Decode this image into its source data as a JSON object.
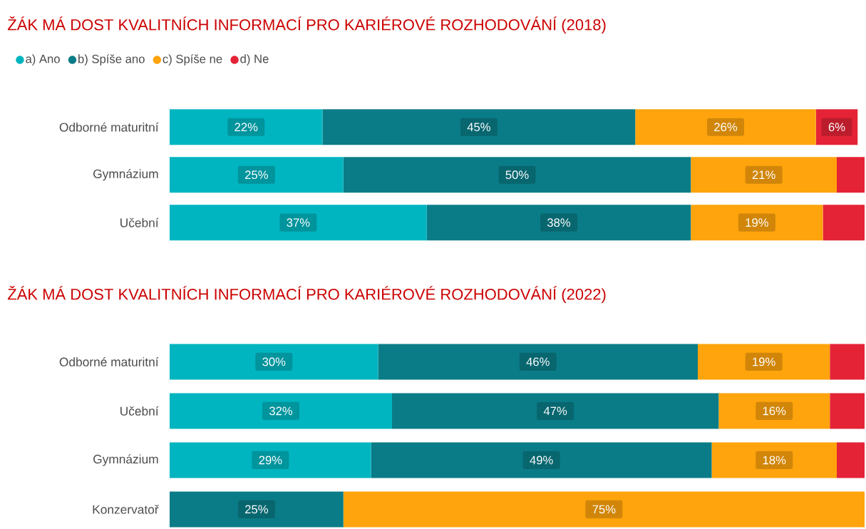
{
  "chart_data": [
    {
      "type": "bar",
      "orientation": "horizontal",
      "stacked": true,
      "title": "ŽÁK MÁ DOST KVALITNÍCH INFORMACÍ PRO KARIÉROVÉ ROZHODOVÁNÍ (2018)",
      "categories": [
        "Odborné maturitní",
        "Gymnázium",
        "Učební"
      ],
      "xlim": [
        0,
        100
      ],
      "tick_labels": "y",
      "legend": "top left",
      "series": [
        {
          "name": "a) Ano",
          "color": "#00b5c0",
          "values": [
            22,
            25,
            37
          ],
          "value_labels": [
            "22%",
            "25%",
            "37%"
          ]
        },
        {
          "name": "b) Spíše ano",
          "color": "#0a7c87",
          "values": [
            45,
            50,
            38
          ],
          "value_labels": [
            "45%",
            "50%",
            "38%"
          ]
        },
        {
          "name": "c) Spíše ne",
          "color": "#ffa40c",
          "values": [
            26,
            21,
            19
          ],
          "value_labels": [
            "26%",
            "21%",
            "19%"
          ]
        },
        {
          "name": "d) Ne",
          "color": "#e42336",
          "values": [
            6,
            4,
            6
          ],
          "value_labels": [
            "6%",
            null,
            null
          ]
        }
      ]
    },
    {
      "type": "bar",
      "orientation": "horizontal",
      "stacked": true,
      "title": "ŽÁK MÁ DOST KVALITNÍCH INFORMACÍ PRO KARIÉROVÉ ROZHODOVÁNÍ (2022)",
      "categories": [
        "Odborné maturitní",
        "Učební",
        "Gymnázium",
        "Konzervatoř"
      ],
      "xlim": [
        0,
        100
      ],
      "tick_labels": "y",
      "series": [
        {
          "color": "#00b5c0",
          "values": [
            30,
            32,
            29,
            0
          ],
          "value_labels": [
            "30%",
            "32%",
            "29%",
            null
          ]
        },
        {
          "color": "#0a7c87",
          "values": [
            46,
            47,
            49,
            25
          ],
          "value_labels": [
            "46%",
            "47%",
            "49%",
            "25%"
          ]
        },
        {
          "color": "#ffa40c",
          "values": [
            19,
            16,
            18,
            75
          ],
          "value_labels": [
            "19%",
            "16%",
            "18%",
            "75%"
          ]
        },
        {
          "color": "#e42336",
          "values": [
            5,
            5,
            4,
            0
          ],
          "value_labels": [
            null,
            null,
            null,
            null
          ]
        }
      ]
    }
  ]
}
